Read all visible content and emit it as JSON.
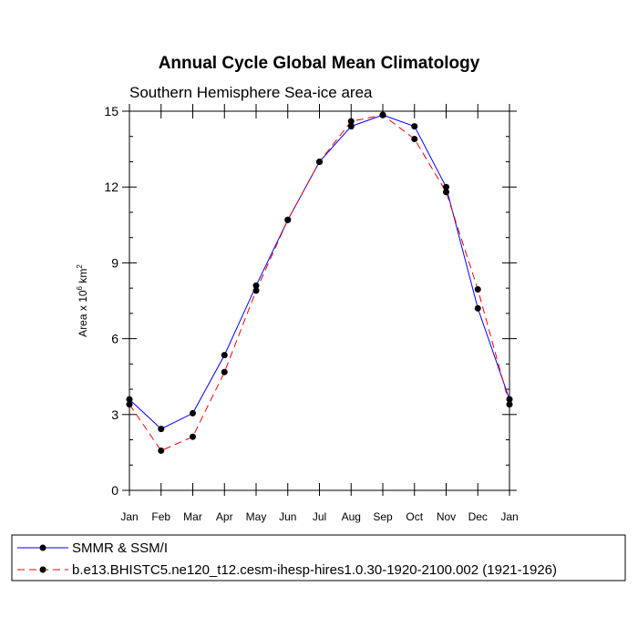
{
  "chart_data": {
    "type": "line",
    "title": "Annual Cycle Global Mean Climatology",
    "subtitle": "Southern Hemisphere Sea-ice area",
    "ylabel": {
      "prefix": "Area x 10",
      "exp1": "6",
      "mid": " km",
      "exp2": "2"
    },
    "categories": [
      "Jan",
      "Feb",
      "Mar",
      "Apr",
      "May",
      "Jun",
      "Jul",
      "Aug",
      "Sep",
      "Oct",
      "Nov",
      "Dec",
      "Jan"
    ],
    "ylim": [
      0,
      15
    ],
    "yticks": [
      0,
      3,
      6,
      9,
      12,
      15
    ],
    "grid": false,
    "legend_position": "bottom",
    "series": [
      {
        "name": "SMMR & SSM/I",
        "color": "#0000ff",
        "line_style": "solid",
        "marker": "filled-circle",
        "values": [
          3.6,
          2.43,
          3.05,
          5.35,
          8.1,
          10.7,
          13.0,
          14.4,
          14.85,
          14.4,
          12.0,
          7.2,
          3.6
        ]
      },
      {
        "name": "b.e13.BHISTC5.ne120_t12.cesm-ihesp-hires1.0.30-1920-2100.002 (1921-1926)",
        "color": "#ff0000",
        "line_style": "dashed",
        "marker": "filled-circle",
        "values": [
          3.4,
          1.57,
          2.12,
          4.68,
          7.9,
          10.7,
          13.0,
          14.6,
          14.85,
          13.9,
          11.8,
          7.95,
          3.4
        ]
      }
    ]
  }
}
